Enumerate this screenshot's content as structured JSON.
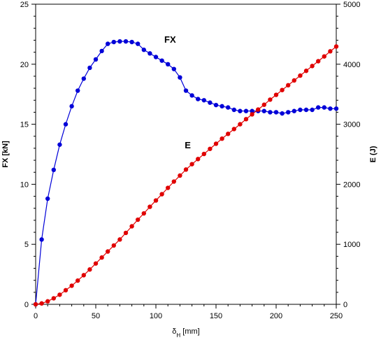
{
  "chart_data": {
    "type": "line",
    "x_axis": {
      "label_main": "δ",
      "label_sub": "H",
      "label_unit": " [mm]",
      "range": [
        0,
        250
      ],
      "ticks": [
        0,
        50,
        100,
        150,
        200,
        250
      ]
    },
    "y_left": {
      "label": "FX [kN]",
      "range": [
        0,
        25
      ],
      "ticks": [
        0,
        5,
        10,
        15,
        20,
        25
      ]
    },
    "y_right": {
      "label": "E (J)",
      "range": [
        0,
        5000
      ],
      "ticks": [
        0,
        1000,
        2000,
        3000,
        4000,
        5000
      ]
    },
    "grid": false,
    "series": [
      {
        "name": "FX",
        "axis": "left",
        "color": "#0000d8",
        "x": [
          0,
          5,
          10,
          15,
          20,
          25,
          30,
          35,
          40,
          45,
          50,
          55,
          60,
          65,
          70,
          75,
          80,
          85,
          90,
          95,
          100,
          105,
          110,
          115,
          120,
          125,
          130,
          135,
          140,
          145,
          150,
          155,
          160,
          165,
          170,
          175,
          180,
          185,
          190,
          195,
          200,
          205,
          210,
          215,
          220,
          225,
          230,
          235,
          240,
          245,
          250
        ],
        "y": [
          0,
          5.4,
          8.8,
          11.2,
          13.3,
          15.0,
          16.5,
          17.8,
          18.8,
          19.7,
          20.4,
          21.1,
          21.7,
          21.85,
          21.9,
          21.9,
          21.85,
          21.7,
          21.2,
          20.9,
          20.6,
          20.3,
          20.0,
          19.6,
          18.9,
          17.8,
          17.4,
          17.1,
          17.0,
          16.8,
          16.6,
          16.5,
          16.4,
          16.2,
          16.1,
          16.1,
          16.1,
          16.1,
          16.1,
          16.0,
          16.0,
          15.9,
          16.0,
          16.1,
          16.2,
          16.2,
          16.2,
          16.4,
          16.4,
          16.3,
          16.3
        ]
      },
      {
        "name": "E",
        "axis": "right",
        "color": "#e00000",
        "x": [
          0,
          5,
          10,
          15,
          20,
          25,
          30,
          35,
          40,
          45,
          50,
          55,
          60,
          65,
          70,
          75,
          80,
          85,
          90,
          95,
          100,
          105,
          110,
          115,
          120,
          125,
          130,
          135,
          140,
          145,
          150,
          155,
          160,
          165,
          170,
          175,
          180,
          185,
          190,
          195,
          200,
          205,
          210,
          215,
          220,
          225,
          230,
          235,
          240,
          245,
          250
        ],
        "y": [
          0,
          15,
          50,
          100,
          160,
          235,
          310,
          395,
          485,
          580,
          680,
          780,
          880,
          980,
          1080,
          1190,
          1300,
          1410,
          1515,
          1625,
          1730,
          1835,
          1940,
          2045,
          2145,
          2245,
          2335,
          2420,
          2505,
          2590,
          2675,
          2760,
          2840,
          2920,
          3000,
          3085,
          3165,
          3245,
          3325,
          3410,
          3490,
          3570,
          3650,
          3730,
          3810,
          3890,
          3970,
          4050,
          4130,
          4215,
          4295
        ]
      }
    ],
    "annotations": [
      {
        "text": "FX",
        "x": 107,
        "y": 21.8
      },
      {
        "text": "E",
        "x": 124,
        "y": 13.0
      }
    ]
  }
}
